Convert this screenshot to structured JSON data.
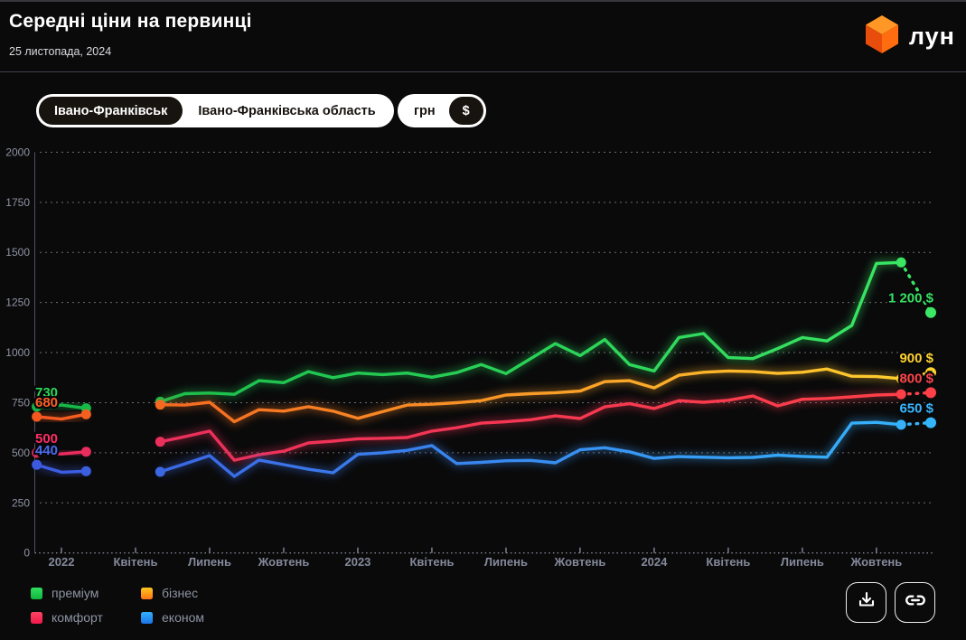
{
  "header": {
    "title": "Середні ціни на первинці",
    "date": "25 листопада, 2024",
    "logo_text": "лун"
  },
  "controls": {
    "region_toggle": {
      "options": [
        {
          "label": "Івано-Франківськ",
          "selected": true
        },
        {
          "label": "Івано-Франківська область",
          "selected": false
        }
      ]
    },
    "currency_toggle": {
      "options": [
        {
          "label": "грн",
          "selected": false
        },
        {
          "label": "$",
          "selected": true
        }
      ]
    }
  },
  "legend": {
    "items": [
      {
        "label": "преміум",
        "color_top": "#2fe05e",
        "color_bottom": "#12b53c"
      },
      {
        "label": "бізнес",
        "color_top": "#ffc61f",
        "color_bottom": "#ff7416"
      },
      {
        "label": "комфорт",
        "color_top": "#ff4463",
        "color_bottom": "#f0184a"
      },
      {
        "label": "економ",
        "color_top": "#33b1ff",
        "color_bottom": "#1b74e8"
      }
    ]
  },
  "footer_buttons": [
    {
      "icon": "download-icon"
    },
    {
      "icon": "link-icon"
    }
  ],
  "chart_data": {
    "type": "line",
    "title": "Середні ціни на первинці",
    "currency": "$",
    "ylim": [
      0,
      2000
    ],
    "ytick_step": 250,
    "grid": "dashed-horizontal",
    "x_unit": "months, index 0 = грудень 2021; solid data грудень 2021 – лютий 2022, розрив, травень 2022 – листопад 2024; пунктир = поточне значення",
    "xticks": [
      {
        "m": 1,
        "label": "2022"
      },
      {
        "m": 4,
        "label": "Квітень"
      },
      {
        "m": 7,
        "label": "Липень"
      },
      {
        "m": 10,
        "label": "Жовтень"
      },
      {
        "m": 13,
        "label": "2023"
      },
      {
        "m": 16,
        "label": "Квітень"
      },
      {
        "m": 19,
        "label": "Липень"
      },
      {
        "m": 22,
        "label": "Жовтень"
      },
      {
        "m": 25,
        "label": "2024"
      },
      {
        "m": 28,
        "label": "Квітень"
      },
      {
        "m": 31,
        "label": "Липень"
      },
      {
        "m": 34,
        "label": "Жовтень"
      }
    ],
    "series": [
      {
        "key": "premium",
        "name": "преміум",
        "color_left": "#15b848",
        "color_right": "#3be764",
        "start_label": "730",
        "start_label_color": "#2bd957",
        "end_label": "1 200 $",
        "end_label_color": "#35e263",
        "segments": [
          [
            [
              0,
              730
            ],
            [
              1,
              738
            ],
            [
              2,
              722
            ]
          ],
          [
            [
              5,
              755
            ],
            [
              6,
              795
            ],
            [
              7,
              798
            ],
            [
              8,
              792
            ],
            [
              9,
              860
            ],
            [
              10,
              850
            ],
            [
              11,
              905
            ],
            [
              12,
              875
            ],
            [
              13,
              898
            ],
            [
              14,
              890
            ],
            [
              15,
              898
            ],
            [
              16,
              877
            ],
            [
              17,
              900
            ],
            [
              18,
              940
            ],
            [
              19,
              895
            ],
            [
              20,
              970
            ],
            [
              21,
              1045
            ],
            [
              22,
              985
            ],
            [
              23,
              1065
            ],
            [
              24,
              940
            ],
            [
              25,
              908
            ],
            [
              26,
              1075
            ],
            [
              27,
              1095
            ],
            [
              28,
              975
            ],
            [
              29,
              970
            ],
            [
              30,
              1020
            ],
            [
              31,
              1075
            ],
            [
              32,
              1058
            ],
            [
              33,
              1135
            ],
            [
              34,
              1445
            ],
            [
              35,
              1450
            ]
          ]
        ],
        "dashed_tail": [
          [
            35,
            1450
          ],
          [
            36.2,
            1200
          ]
        ]
      },
      {
        "key": "business",
        "name": "бізнес",
        "color_left": "#f4581f",
        "color_right": "#ffd22e",
        "start_label": "680",
        "start_label_color": "#ff5f26",
        "end_label": "900 $",
        "end_label_color": "#ffd22e",
        "segments": [
          [
            [
              0,
              680
            ],
            [
              1,
              668
            ],
            [
              2,
              692
            ]
          ],
          [
            [
              5,
              740
            ],
            [
              6,
              738
            ],
            [
              7,
              752
            ],
            [
              8,
              655
            ],
            [
              9,
              715
            ],
            [
              10,
              708
            ],
            [
              11,
              730
            ],
            [
              12,
              708
            ],
            [
              13,
              672
            ],
            [
              14,
              705
            ],
            [
              15,
              738
            ],
            [
              16,
              742
            ],
            [
              17,
              750
            ],
            [
              18,
              760
            ],
            [
              19,
              788
            ],
            [
              20,
              795
            ],
            [
              21,
              800
            ],
            [
              22,
              808
            ],
            [
              23,
              855
            ],
            [
              24,
              860
            ],
            [
              25,
              824
            ],
            [
              26,
              887
            ],
            [
              27,
              902
            ],
            [
              28,
              908
            ],
            [
              29,
              905
            ],
            [
              30,
              896
            ],
            [
              31,
              902
            ],
            [
              32,
              918
            ],
            [
              33,
              882
            ],
            [
              34,
              880
            ],
            [
              35,
              870
            ]
          ]
        ],
        "dashed_tail": [
          [
            35,
            870
          ],
          [
            36.2,
            900
          ]
        ]
      },
      {
        "key": "comfort",
        "name": "комфорт",
        "color_left": "#e82c5e",
        "color_right": "#ff4048",
        "start_label": "500",
        "start_label_color": "#ff2e63",
        "end_label": "800 $",
        "end_label_color": "#ff4449",
        "segments": [
          [
            [
              0,
              500
            ],
            [
              1,
              494
            ],
            [
              2,
              505
            ]
          ],
          [
            [
              5,
              555
            ],
            [
              6,
              580
            ],
            [
              7,
              608
            ],
            [
              8,
              463
            ],
            [
              9,
              490
            ],
            [
              10,
              508
            ],
            [
              11,
              549
            ],
            [
              12,
              558
            ],
            [
              13,
              570
            ],
            [
              14,
              572
            ],
            [
              15,
              576
            ],
            [
              16,
              608
            ],
            [
              17,
              625
            ],
            [
              18,
              648
            ],
            [
              19,
              655
            ],
            [
              20,
              665
            ],
            [
              21,
              684
            ],
            [
              22,
              671
            ],
            [
              23,
              729
            ],
            [
              24,
              745
            ],
            [
              25,
              721
            ],
            [
              26,
              760
            ],
            [
              27,
              752
            ],
            [
              28,
              762
            ],
            [
              29,
              783
            ],
            [
              30,
              734
            ],
            [
              31,
              767
            ],
            [
              32,
              771
            ],
            [
              33,
              779
            ],
            [
              34,
              788
            ],
            [
              35,
              792
            ]
          ]
        ],
        "dashed_tail": [
          [
            35,
            792
          ],
          [
            36.2,
            800
          ]
        ]
      },
      {
        "key": "econom",
        "name": "економ",
        "color_left": "#3c5ae0",
        "color_right": "#35b5fc",
        "start_label": "440",
        "start_label_color": "#4a6cf0",
        "end_label": "650 $",
        "end_label_color": "#38b6ff",
        "segments": [
          [
            [
              0,
              440
            ],
            [
              1,
              403
            ],
            [
              2,
              408
            ]
          ],
          [
            [
              5,
              405
            ],
            [
              6,
              445
            ],
            [
              7,
              486
            ],
            [
              8,
              382
            ],
            [
              9,
              464
            ],
            [
              10,
              441
            ],
            [
              11,
              418
            ],
            [
              12,
              400
            ],
            [
              13,
              492
            ],
            [
              14,
              500
            ],
            [
              15,
              512
            ],
            [
              16,
              536
            ],
            [
              17,
              446
            ],
            [
              18,
              452
            ],
            [
              19,
              460
            ],
            [
              20,
              462
            ],
            [
              21,
              450
            ],
            [
              22,
              515
            ],
            [
              23,
              525
            ],
            [
              24,
              505
            ],
            [
              25,
              472
            ],
            [
              26,
              481
            ],
            [
              27,
              478
            ],
            [
              28,
              475
            ],
            [
              29,
              477
            ],
            [
              30,
              488
            ],
            [
              31,
              482
            ],
            [
              32,
              478
            ],
            [
              33,
              648
            ],
            [
              34,
              652
            ],
            [
              35,
              640
            ]
          ]
        ],
        "dashed_tail": [
          [
            35,
            640
          ],
          [
            36.2,
            650
          ]
        ]
      }
    ]
  }
}
